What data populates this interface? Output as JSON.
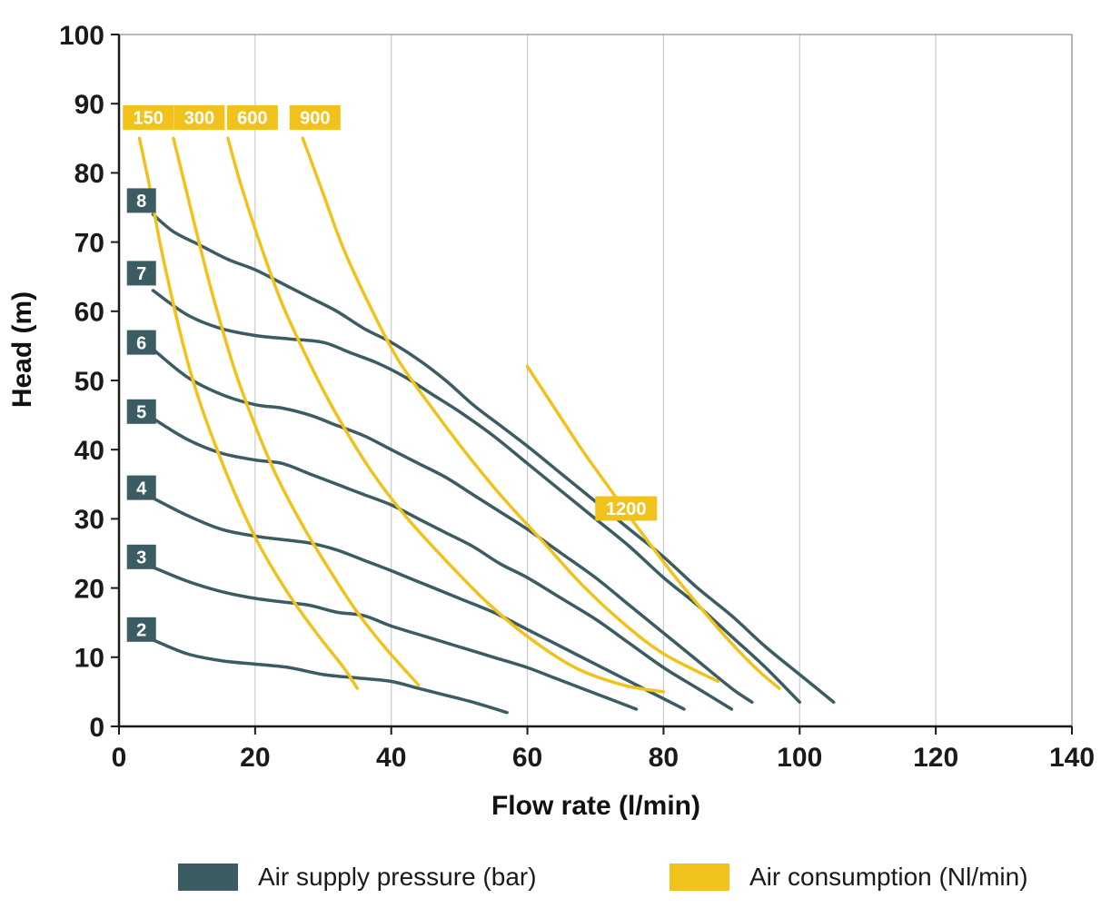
{
  "chart_data": {
    "type": "line",
    "title": "",
    "xlabel": "Flow rate (l/min)",
    "ylabel": "Head (m)",
    "xlim": [
      0,
      140
    ],
    "ylim": [
      0,
      100
    ],
    "xticks": [
      0,
      20,
      40,
      60,
      80,
      100,
      120,
      140
    ],
    "yticks": [
      0,
      10,
      20,
      30,
      40,
      50,
      60,
      70,
      80,
      90,
      100
    ],
    "grid": "vertical gridlines only",
    "colors": {
      "pressure": "#3B5C62",
      "consumption": "#F1C21B",
      "grid": "#CBCBCB",
      "frame": "#777777",
      "axis": "#1A1A1A"
    },
    "legend": {
      "position": "bottom"
    },
    "series_groups": [
      {
        "id": "pressure",
        "legend_label": "Air supply pressure (bar)",
        "color": "#3B5C62",
        "series": [
          {
            "label": "8",
            "label_pos": [
              3.3,
              76
            ],
            "points": [
              [
                5,
                74
              ],
              [
                8,
                71.5
              ],
              [
                12,
                69.5
              ],
              [
                16,
                67.5
              ],
              [
                20,
                66
              ],
              [
                24,
                64
              ],
              [
                28,
                62
              ],
              [
                32,
                60
              ],
              [
                36,
                57.5
              ],
              [
                40,
                55.5
              ],
              [
                44,
                53
              ],
              [
                48,
                50
              ],
              [
                52,
                46.5
              ],
              [
                56,
                43.5
              ],
              [
                60,
                40.5
              ],
              [
                65,
                36.5
              ],
              [
                70,
                32.5
              ],
              [
                75,
                28.5
              ],
              [
                80,
                24.5
              ],
              [
                85,
                20
              ],
              [
                90,
                16
              ],
              [
                95,
                11.5
              ],
              [
                100,
                7.5
              ],
              [
                105,
                3.5
              ]
            ]
          },
          {
            "label": "7",
            "label_pos": [
              3.3,
              65.5
            ],
            "points": [
              [
                5,
                63
              ],
              [
                10,
                59.5
              ],
              [
                15,
                57.5
              ],
              [
                20,
                56.5
              ],
              [
                25,
                56
              ],
              [
                30,
                55.5
              ],
              [
                34,
                54
              ],
              [
                38,
                52.5
              ],
              [
                42,
                50.5
              ],
              [
                46,
                48
              ],
              [
                50,
                45.5
              ],
              [
                55,
                42
              ],
              [
                60,
                38
              ],
              [
                65,
                34
              ],
              [
                70,
                30
              ],
              [
                75,
                26
              ],
              [
                80,
                21.5
              ],
              [
                85,
                17.5
              ],
              [
                90,
                13
              ],
              [
                95,
                8.5
              ],
              [
                100,
                3.5
              ]
            ]
          },
          {
            "label": "6",
            "label_pos": [
              3.3,
              55.5
            ],
            "points": [
              [
                5,
                54.5
              ],
              [
                10,
                50.5
              ],
              [
                15,
                48
              ],
              [
                20,
                46.5
              ],
              [
                24,
                46
              ],
              [
                28,
                45
              ],
              [
                32,
                43.5
              ],
              [
                36,
                42
              ],
              [
                40,
                40
              ],
              [
                44,
                38
              ],
              [
                48,
                36
              ],
              [
                52,
                33.5
              ],
              [
                56,
                31
              ],
              [
                60,
                28.5
              ],
              [
                65,
                25
              ],
              [
                70,
                21.5
              ],
              [
                75,
                17.5
              ],
              [
                80,
                13.5
              ],
              [
                85,
                9.5
              ],
              [
                90,
                5.5
              ],
              [
                93,
                3.5
              ]
            ]
          },
          {
            "label": "5",
            "label_pos": [
              3.3,
              45.5
            ],
            "points": [
              [
                5,
                44.5
              ],
              [
                10,
                41.5
              ],
              [
                15,
                39.5
              ],
              [
                20,
                38.5
              ],
              [
                24,
                38
              ],
              [
                28,
                36.5
              ],
              [
                32,
                35
              ],
              [
                36,
                33.5
              ],
              [
                40,
                32
              ],
              [
                44,
                30
              ],
              [
                48,
                28
              ],
              [
                52,
                26
              ],
              [
                56,
                23.5
              ],
              [
                60,
                21.5
              ],
              [
                65,
                18.5
              ],
              [
                70,
                15.5
              ],
              [
                75,
                12
              ],
              [
                80,
                8.5
              ],
              [
                85,
                5.5
              ],
              [
                90,
                2.5
              ]
            ]
          },
          {
            "label": "4",
            "label_pos": [
              3.3,
              34.5
            ],
            "points": [
              [
                5,
                33
              ],
              [
                10,
                30.5
              ],
              [
                15,
                28.5
              ],
              [
                20,
                27.5
              ],
              [
                24,
                27
              ],
              [
                28,
                26.5
              ],
              [
                32,
                25.5
              ],
              [
                36,
                24
              ],
              [
                40,
                22.5
              ],
              [
                45,
                20.5
              ],
              [
                50,
                18.5
              ],
              [
                55,
                16.5
              ],
              [
                60,
                14
              ],
              [
                65,
                11.5
              ],
              [
                70,
                9
              ],
              [
                75,
                6.5
              ],
              [
                79,
                4.5
              ],
              [
                83,
                2.5
              ]
            ]
          },
          {
            "label": "3",
            "label_pos": [
              3.3,
              24.5
            ],
            "points": [
              [
                5,
                23
              ],
              [
                10,
                21
              ],
              [
                15,
                19.5
              ],
              [
                20,
                18.5
              ],
              [
                24,
                18
              ],
              [
                28,
                17.5
              ],
              [
                32,
                16.5
              ],
              [
                36,
                16
              ],
              [
                40,
                14.5
              ],
              [
                45,
                13
              ],
              [
                50,
                11.5
              ],
              [
                55,
                10
              ],
              [
                60,
                8.5
              ],
              [
                64,
                7
              ],
              [
                68,
                5.5
              ],
              [
                72,
                4
              ],
              [
                76,
                2.5
              ]
            ]
          },
          {
            "label": "2",
            "label_pos": [
              3.3,
              14
            ],
            "points": [
              [
                5,
                12.5
              ],
              [
                10,
                10.5
              ],
              [
                15,
                9.5
              ],
              [
                20,
                9
              ],
              [
                25,
                8.5
              ],
              [
                30,
                7.5
              ],
              [
                35,
                7
              ],
              [
                40,
                6.5
              ],
              [
                44,
                5.5
              ],
              [
                48,
                4.5
              ],
              [
                52,
                3.5
              ],
              [
                57,
                2
              ]
            ]
          }
        ]
      },
      {
        "id": "consumption",
        "legend_label": "Air consumption (Nl/min)",
        "color": "#F1C21B",
        "series": [
          {
            "label": "150",
            "label_pos": [
              4.3,
              88
            ],
            "points": [
              [
                3,
                85
              ],
              [
                4.5,
                78
              ],
              [
                6,
                70
              ],
              [
                8,
                61
              ],
              [
                10,
                53
              ],
              [
                12,
                46.5
              ],
              [
                15,
                38.5
              ],
              [
                18,
                31.5
              ],
              [
                21,
                25.5
              ],
              [
                25,
                19
              ],
              [
                29,
                13.5
              ],
              [
                33,
                8.5
              ],
              [
                35,
                5.5
              ]
            ]
          },
          {
            "label": "300",
            "label_pos": [
              11.8,
              88
            ],
            "points": [
              [
                8,
                85
              ],
              [
                10,
                77
              ],
              [
                12,
                69
              ],
              [
                14,
                61.5
              ],
              [
                17,
                51.5
              ],
              [
                20,
                43.5
              ],
              [
                23,
                36.5
              ],
              [
                27,
                29
              ],
              [
                31,
                22.5
              ],
              [
                35,
                16.5
              ],
              [
                39,
                11.5
              ],
              [
                44,
                6
              ]
            ]
          },
          {
            "label": "600",
            "label_pos": [
              19.6,
              88
            ],
            "points": [
              [
                16,
                85
              ],
              [
                18,
                78
              ],
              [
                21,
                69
              ],
              [
                24,
                61
              ],
              [
                28,
                52.5
              ],
              [
                32,
                45
              ],
              [
                37,
                37
              ],
              [
                42,
                30.5
              ],
              [
                48,
                24
              ],
              [
                54,
                18
              ],
              [
                60,
                13
              ],
              [
                67,
                8.5
              ],
              [
                74,
                6
              ],
              [
                80,
                5
              ]
            ]
          },
          {
            "label": "900",
            "label_pos": [
              28.8,
              88
            ],
            "points": [
              [
                27,
                85
              ],
              [
                30,
                77
              ],
              [
                33,
                69
              ],
              [
                37,
                60.5
              ],
              [
                41,
                53
              ],
              [
                46,
                46
              ],
              [
                51,
                39.5
              ],
              [
                56,
                33.5
              ],
              [
                62,
                27
              ],
              [
                68,
                20.5
              ],
              [
                74,
                15
              ],
              [
                80,
                10.5
              ],
              [
                88,
                6.5
              ]
            ]
          },
          {
            "label": "1200",
            "label_pos": [
              74.5,
              31.5
            ],
            "points": [
              [
                60,
                52
              ],
              [
                64,
                46
              ],
              [
                68,
                40
              ],
              [
                72,
                34.5
              ],
              [
                76,
                29
              ],
              [
                81,
                22.5
              ],
              [
                86,
                16.5
              ],
              [
                90,
                12
              ],
              [
                94,
                8
              ],
              [
                97,
                5.5
              ]
            ]
          }
        ]
      }
    ]
  }
}
